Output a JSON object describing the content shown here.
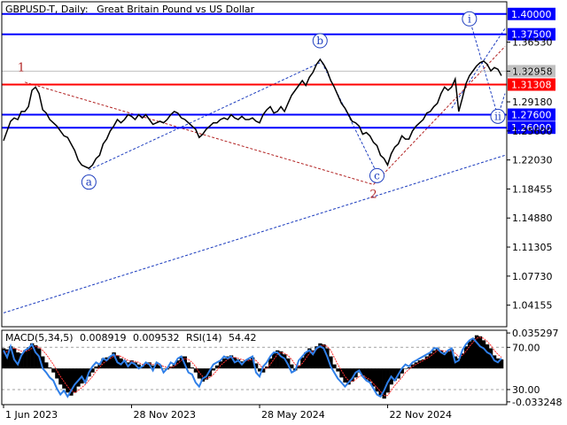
{
  "header": {
    "symbol": "GBPUSD-T, Daily:",
    "description": "Great Britain Pound vs US Dollar"
  },
  "indicator_header": {
    "name": "MACD(5,34,5)",
    "macd_value": "0.008919",
    "signal_value": "0.009532",
    "rsi_name": "RSI(14)",
    "rsi_value": "54.42"
  },
  "chart_data": {
    "type": "line",
    "price_axis": {
      "ylim": [
        1.015,
        1.415
      ],
      "ticks": [
        "1.36530",
        "1.32958",
        "1.29180",
        "1.25600",
        "1.22030",
        "1.18455",
        "1.14880",
        "1.11305",
        "1.07730",
        "1.04155"
      ],
      "tick_values": [
        1.3653,
        1.32958,
        1.2918,
        1.256,
        1.2203,
        1.18455,
        1.1488,
        1.11305,
        1.0773,
        1.04155
      ]
    },
    "x_axis": {
      "labels": [
        "1 Jun 2023",
        "28 Nov 2023",
        "28 May 2024",
        "22 Nov 2024"
      ],
      "label_index": [
        0,
        36,
        72,
        108
      ],
      "count": 141
    },
    "price_series": [
      1.244,
      1.256,
      1.268,
      1.272,
      1.27,
      1.28,
      1.28,
      1.286,
      1.306,
      1.31,
      1.302,
      1.282,
      1.278,
      1.27,
      1.266,
      1.262,
      1.256,
      1.25,
      1.248,
      1.24,
      1.232,
      1.22,
      1.214,
      1.212,
      1.21,
      1.214,
      1.222,
      1.226,
      1.24,
      1.246,
      1.256,
      1.262,
      1.27,
      1.266,
      1.27,
      1.276,
      1.274,
      1.27,
      1.276,
      1.272,
      1.276,
      1.27,
      1.264,
      1.266,
      1.268,
      1.266,
      1.27,
      1.276,
      1.28,
      1.278,
      1.272,
      1.27,
      1.266,
      1.262,
      1.258,
      1.248,
      1.252,
      1.258,
      1.262,
      1.266,
      1.266,
      1.27,
      1.272,
      1.27,
      1.276,
      1.272,
      1.27,
      1.274,
      1.27,
      1.27,
      1.272,
      1.268,
      1.266,
      1.276,
      1.282,
      1.286,
      1.278,
      1.28,
      1.286,
      1.28,
      1.29,
      1.3,
      1.306,
      1.312,
      1.318,
      1.312,
      1.322,
      1.328,
      1.338,
      1.344,
      1.338,
      1.33,
      1.318,
      1.31,
      1.3,
      1.29,
      1.284,
      1.276,
      1.268,
      1.266,
      1.262,
      1.252,
      1.254,
      1.25,
      1.242,
      1.238,
      1.226,
      1.222,
      1.214,
      1.228,
      1.236,
      1.24,
      1.25,
      1.246,
      1.246,
      1.256,
      1.262,
      1.266,
      1.27,
      1.278,
      1.28,
      1.286,
      1.29,
      1.302,
      1.31,
      1.306,
      1.31,
      1.32,
      1.28,
      1.296,
      1.314,
      1.324,
      1.33,
      1.336,
      1.34,
      1.342,
      1.338,
      1.33,
      1.334,
      1.332,
      1.324
    ],
    "levels": [
      {
        "label": "1.40000",
        "value": 1.4,
        "color": "#0000ff"
      },
      {
        "label": "1.37500",
        "value": 1.375,
        "color": "#0000ff"
      },
      {
        "label": "1.32958",
        "value": 1.32958,
        "color": "#c0c0c0"
      },
      {
        "label": "1.31308",
        "value": 1.31308,
        "color": "#ff0000"
      },
      {
        "label": "1.27600",
        "value": 1.276,
        "color": "#0000ff"
      },
      {
        "label": "1.26000",
        "value": 1.26,
        "color": "#0000ff"
      }
    ],
    "wave_labels": [
      {
        "text": "1",
        "style": "plain",
        "color": "#b22222",
        "x": 5,
        "y": 1.334
      },
      {
        "text": "2",
        "style": "plain",
        "color": "#b22222",
        "x": 104,
        "y": 1.178
      },
      {
        "text": "a",
        "style": "circle",
        "color": "#1f3fbf",
        "x": 24,
        "y": 1.193
      },
      {
        "text": "b",
        "style": "circle",
        "color": "#1f3fbf",
        "x": 89,
        "y": 1.367
      },
      {
        "text": "c",
        "style": "circle",
        "color": "#1f3fbf",
        "x": 105,
        "y": 1.201
      },
      {
        "text": "i",
        "style": "circle",
        "color": "#1f3fbf",
        "x": 131,
        "y": 1.394
      },
      {
        "text": "ii",
        "style": "circle",
        "color": "#1f3fbf",
        "x": 139,
        "y": 1.274
      }
    ],
    "trendlines": [
      {
        "color": "#b22222",
        "points": [
          [
            6,
            1.316
          ],
          [
            104,
            1.19
          ]
        ]
      },
      {
        "color": "#b22222",
        "points": [
          [
            104,
            1.19
          ],
          [
            141,
            1.36
          ]
        ]
      },
      {
        "color": "#1f3fbf",
        "points": [
          [
            24,
            1.208
          ],
          [
            89,
            1.34
          ]
        ]
      },
      {
        "color": "#1f3fbf",
        "points": [
          [
            0,
            1.032
          ],
          [
            141,
            1.226
          ]
        ]
      },
      {
        "color": "#1f3fbf",
        "points": [
          [
            89,
            1.345
          ],
          [
            105,
            1.204
          ]
        ]
      },
      {
        "color": "#1f3fbf",
        "points": [
          [
            131,
            1.394
          ],
          [
            139,
            1.274
          ]
        ]
      },
      {
        "color": "#1f3fbf",
        "points": [
          [
            139,
            1.274
          ],
          [
            141,
            1.302
          ]
        ]
      },
      {
        "color": "#1f3fbf",
        "points": [
          [
            126,
            1.284
          ],
          [
            141,
            1.382
          ]
        ]
      }
    ],
    "indicator": {
      "ylim": [
        -0.036,
        0.038
      ],
      "ticks": [
        "0.035297",
        "70.00",
        "30.00",
        "-0.033248"
      ],
      "tick_values": [
        0.035297,
        0.021,
        -0.021,
        -0.033248
      ],
      "macd": [
        0.02,
        0.019,
        0.022,
        0.02,
        0.016,
        0.015,
        0.018,
        0.021,
        0.025,
        0.023,
        0.02,
        0.012,
        0.006,
        0.001,
        -0.004,
        -0.01,
        -0.016,
        -0.02,
        -0.024,
        -0.027,
        -0.024,
        -0.018,
        -0.015,
        -0.012,
        -0.008,
        -0.004,
        0.002,
        0.004,
        0.01,
        0.011,
        0.012,
        0.016,
        0.013,
        0.01,
        0.008,
        0.006,
        0.008,
        0.006,
        0.004,
        0.002,
        0.005,
        0.006,
        0.003,
        0.005,
        0.003,
        0.0,
        -0.001,
        0.002,
        0.004,
        0.008,
        0.012,
        0.012,
        0.006,
        0.001,
        -0.004,
        -0.01,
        -0.013,
        -0.011,
        -0.008,
        -0.002,
        0.003,
        0.007,
        0.01,
        0.012,
        0.013,
        0.011,
        0.009,
        0.007,
        0.008,
        0.009,
        0.011,
        0.005,
        -0.003,
        -0.004,
        0.002,
        0.01,
        0.015,
        0.018,
        0.017,
        0.014,
        0.01,
        0.004,
        -0.002,
        0.003,
        0.011,
        0.016,
        0.02,
        0.018,
        0.022,
        0.025,
        0.024,
        0.02,
        0.012,
        0.004,
        -0.003,
        -0.009,
        -0.014,
        -0.016,
        -0.013,
        -0.009,
        -0.004,
        -0.007,
        -0.011,
        -0.013,
        -0.018,
        -0.023,
        -0.027,
        -0.03,
        -0.024,
        -0.016,
        -0.012,
        -0.01,
        -0.005,
        0.0,
        0.001,
        0.004,
        0.006,
        0.008,
        0.009,
        0.012,
        0.015,
        0.018,
        0.02,
        0.018,
        0.016,
        0.017,
        0.019,
        0.012,
        0.01,
        0.015,
        0.022,
        0.027,
        0.03,
        0.033,
        0.032,
        0.028,
        0.024,
        0.02,
        0.013,
        0.01,
        0.009
      ],
      "signal": [
        0.015,
        0.017,
        0.019,
        0.02,
        0.019,
        0.017,
        0.017,
        0.018,
        0.02,
        0.022,
        0.021,
        0.018,
        0.014,
        0.009,
        0.004,
        -0.002,
        -0.008,
        -0.013,
        -0.018,
        -0.022,
        -0.024,
        -0.022,
        -0.019,
        -0.016,
        -0.012,
        -0.008,
        -0.003,
        0.001,
        0.005,
        0.008,
        0.01,
        0.012,
        0.013,
        0.012,
        0.01,
        0.008,
        0.007,
        0.007,
        0.006,
        0.004,
        0.004,
        0.005,
        0.004,
        0.004,
        0.004,
        0.002,
        0.001,
        0.001,
        0.002,
        0.005,
        0.008,
        0.01,
        0.009,
        0.006,
        0.002,
        -0.004,
        -0.008,
        -0.01,
        -0.009,
        -0.006,
        -0.002,
        0.003,
        0.006,
        0.009,
        0.011,
        0.011,
        0.01,
        0.009,
        0.008,
        0.008,
        0.009,
        0.008,
        0.004,
        0.0,
        0.0,
        0.004,
        0.009,
        0.014,
        0.016,
        0.015,
        0.013,
        0.009,
        0.004,
        0.002,
        0.005,
        0.01,
        0.015,
        0.017,
        0.019,
        0.022,
        0.023,
        0.022,
        0.018,
        0.011,
        0.004,
        -0.002,
        -0.008,
        -0.012,
        -0.013,
        -0.011,
        -0.008,
        -0.007,
        -0.009,
        -0.011,
        -0.015,
        -0.019,
        -0.023,
        -0.027,
        -0.027,
        -0.022,
        -0.017,
        -0.013,
        -0.009,
        -0.004,
        -0.001,
        0.002,
        0.004,
        0.006,
        0.008,
        0.01,
        0.012,
        0.015,
        0.018,
        0.018,
        0.017,
        0.017,
        0.018,
        0.015,
        0.012,
        0.013,
        0.017,
        0.022,
        0.026,
        0.03,
        0.031,
        0.03,
        0.027,
        0.023,
        0.018,
        0.014,
        0.011
      ],
      "rsi": [
        0.018,
        0.011,
        0.022,
        0.009,
        0.004,
        0.013,
        0.018,
        0.02,
        0.024,
        0.016,
        0.012,
        0.0,
        -0.004,
        -0.009,
        -0.012,
        -0.02,
        -0.026,
        -0.022,
        -0.028,
        -0.022,
        -0.016,
        -0.012,
        -0.008,
        -0.014,
        -0.004,
        0.002,
        0.006,
        0.004,
        0.01,
        0.008,
        0.012,
        0.014,
        0.006,
        0.004,
        0.008,
        0.002,
        0.006,
        0.004,
        0.0,
        0.002,
        0.006,
        0.004,
        -0.002,
        0.006,
        0.004,
        -0.004,
        0.0,
        0.006,
        0.004,
        0.01,
        0.012,
        0.004,
        -0.004,
        -0.006,
        -0.014,
        -0.018,
        -0.01,
        -0.008,
        -0.002,
        0.004,
        0.006,
        0.008,
        0.012,
        0.01,
        0.012,
        0.006,
        0.008,
        0.004,
        0.008,
        0.01,
        0.012,
        -0.004,
        -0.008,
        0.002,
        0.006,
        0.012,
        0.016,
        0.016,
        0.012,
        0.01,
        0.004,
        -0.004,
        -0.002,
        0.008,
        0.012,
        0.016,
        0.018,
        0.014,
        0.02,
        0.022,
        0.02,
        0.012,
        0.002,
        -0.004,
        -0.01,
        -0.014,
        -0.018,
        -0.014,
        -0.01,
        -0.004,
        -0.002,
        -0.008,
        -0.012,
        -0.014,
        -0.02,
        -0.026,
        -0.028,
        -0.022,
        -0.014,
        -0.008,
        -0.012,
        -0.006,
        0.0,
        0.004,
        0.002,
        0.006,
        0.008,
        0.01,
        0.012,
        0.014,
        0.016,
        0.02,
        0.02,
        0.016,
        0.014,
        0.018,
        0.02,
        0.006,
        0.008,
        0.018,
        0.024,
        0.028,
        0.03,
        0.026,
        0.022,
        0.02,
        0.016,
        0.014,
        0.008,
        0.006,
        0.01
      ]
    }
  }
}
